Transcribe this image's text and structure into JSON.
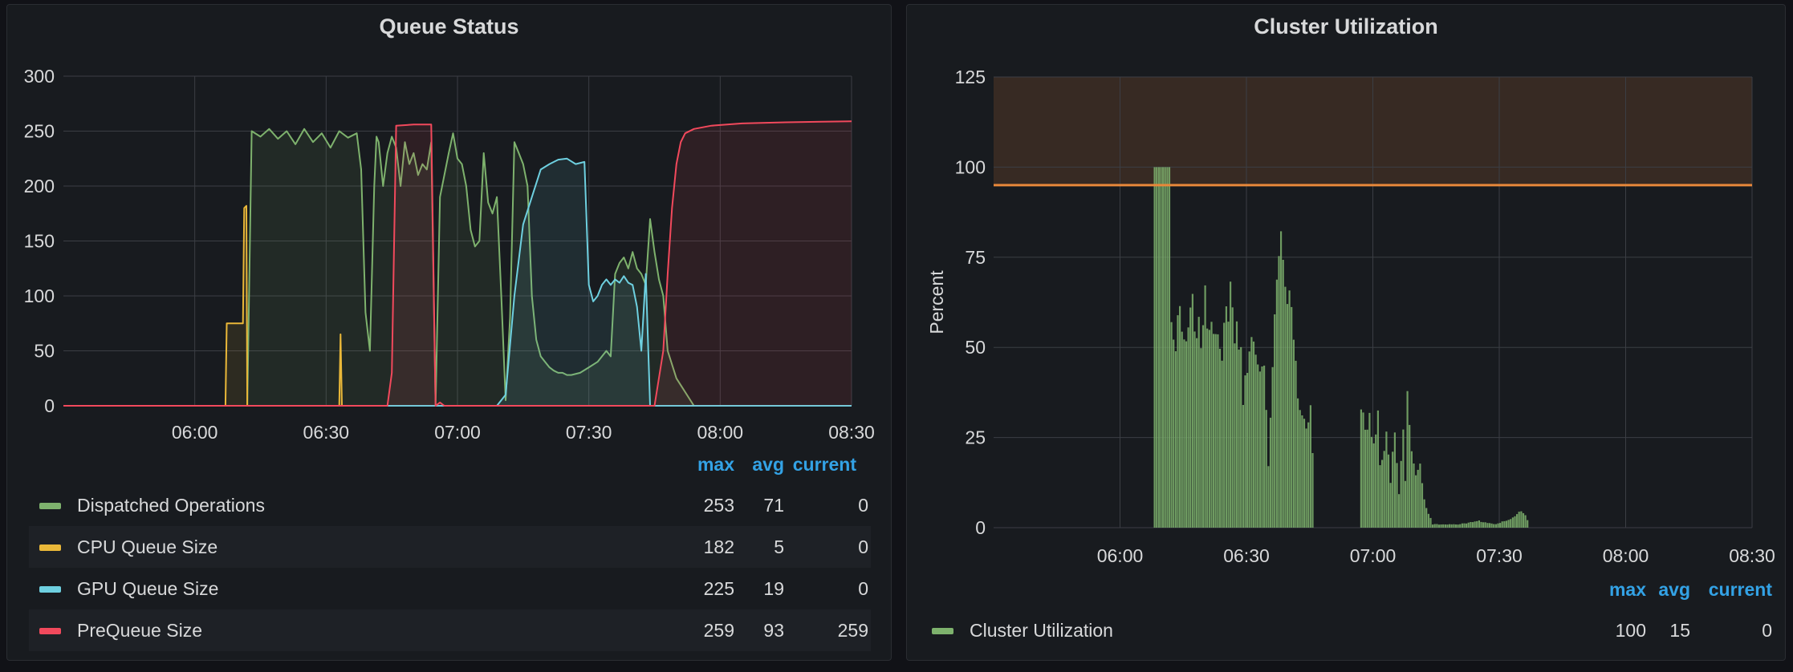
{
  "colors": {
    "dispatched": "#7eb26d",
    "cpu": "#eab839",
    "gpu": "#6ed0e0",
    "prequeue": "#f2495c",
    "utilization": "#7eb26d",
    "threshold": "#e8883a",
    "grid": "#3b3e44",
    "legend_header": "#33a2e5"
  },
  "panels": {
    "queue": {
      "title": "Queue Status",
      "legend_columns": [
        "max",
        "avg",
        "current"
      ],
      "legend": [
        {
          "name": "Dispatched Operations",
          "max": "253",
          "avg": "71",
          "current": "0",
          "color": "#7eb26d"
        },
        {
          "name": "CPU Queue Size",
          "max": "182",
          "avg": "5",
          "current": "0",
          "color": "#eab839"
        },
        {
          "name": "GPU Queue Size",
          "max": "225",
          "avg": "19",
          "current": "0",
          "color": "#6ed0e0"
        },
        {
          "name": "PreQueue Size",
          "max": "259",
          "avg": "93",
          "current": "259",
          "color": "#f2495c"
        }
      ]
    },
    "cluster": {
      "title": "Cluster Utilization",
      "legend_columns": [
        "max",
        "avg",
        "current"
      ],
      "legend": [
        {
          "name": "Cluster Utilization",
          "max": "100",
          "avg": "15",
          "current": "0",
          "color": "#7eb26d"
        }
      ]
    }
  },
  "chart_data": [
    {
      "type": "area",
      "title": "Queue Status",
      "xlabel": "",
      "ylabel": "",
      "x_domain_minutes": [
        330,
        510
      ],
      "x_ticks": [
        "06:00",
        "06:30",
        "07:00",
        "07:30",
        "08:00",
        "08:30"
      ],
      "x_tick_minutes": [
        360,
        390,
        420,
        450,
        480,
        510
      ],
      "ylim": [
        0,
        300
      ],
      "y_ticks": [
        0,
        50,
        100,
        150,
        200,
        250,
        300
      ],
      "grid": true,
      "legend_placement": "bottom",
      "series": [
        {
          "name": "Dispatched Operations",
          "color": "#7eb26d",
          "x_minutes": [
            330,
            371,
            372,
            373,
            375,
            377,
            379,
            381,
            383,
            385,
            387,
            389,
            391,
            393,
            395,
            397,
            398,
            399,
            400,
            401,
            401.5,
            402,
            403,
            404,
            405,
            406,
            407,
            408,
            409,
            410,
            411,
            412,
            413,
            414,
            415,
            416,
            418,
            419,
            420,
            421,
            422,
            423,
            424,
            425,
            426,
            427,
            428,
            429,
            430,
            431,
            432,
            433,
            434,
            435,
            436,
            437,
            438,
            439,
            440,
            441,
            442,
            443,
            444,
            445,
            446,
            448,
            450,
            452,
            454,
            455,
            456,
            457,
            458,
            459,
            460,
            461,
            462,
            463,
            464,
            465,
            466,
            467,
            468,
            470,
            474,
            510
          ],
          "values": [
            0,
            0,
            0,
            250,
            245,
            252,
            243,
            250,
            238,
            252,
            240,
            248,
            235,
            250,
            244,
            248,
            215,
            85,
            50,
            200,
            245,
            240,
            200,
            230,
            245,
            235,
            200,
            240,
            220,
            230,
            210,
            220,
            215,
            240,
            0,
            190,
            230,
            248,
            225,
            220,
            200,
            160,
            145,
            150,
            230,
            185,
            175,
            190,
            100,
            5,
            80,
            240,
            230,
            220,
            200,
            100,
            60,
            45,
            40,
            35,
            32,
            30,
            30,
            28,
            28,
            30,
            35,
            40,
            50,
            45,
            120,
            130,
            135,
            125,
            140,
            125,
            120,
            110,
            170,
            140,
            115,
            100,
            50,
            25,
            0,
            0
          ]
        },
        {
          "name": "CPU Queue Size",
          "color": "#eab839",
          "x_minutes": [
            330,
            367,
            367.3,
            371,
            371.3,
            371.8,
            372,
            393,
            393.3,
            393.6,
            394,
            510
          ],
          "values": [
            0,
            0,
            75,
            75,
            180,
            182,
            0,
            0,
            65,
            0,
            0,
            0
          ]
        },
        {
          "name": "GPU Queue Size",
          "color": "#6ed0e0",
          "x_minutes": [
            330,
            429,
            431,
            433,
            435,
            437,
            439,
            441,
            443,
            445,
            447,
            449,
            450,
            451,
            452,
            453,
            454,
            455,
            456,
            457,
            458,
            459,
            460,
            461,
            462,
            463,
            464,
            465,
            466,
            467,
            468,
            510
          ],
          "values": [
            0,
            0,
            10,
            100,
            165,
            190,
            215,
            220,
            224,
            225,
            220,
            222,
            110,
            95,
            100,
            110,
            115,
            110,
            115,
            112,
            118,
            112,
            110,
            90,
            50,
            120,
            0,
            0,
            0,
            0,
            0,
            0
          ]
        },
        {
          "name": "PreQueue Size",
          "color": "#f2495c",
          "x_minutes": [
            330,
            404,
            405,
            406,
            410,
            414,
            415,
            416,
            417,
            465,
            467,
            468,
            469,
            470,
            471,
            472,
            474,
            478,
            485,
            495,
            510
          ],
          "values": [
            0,
            0,
            30,
            255,
            256,
            256,
            0,
            3,
            0,
            0,
            50,
            120,
            180,
            220,
            240,
            248,
            252,
            255,
            257,
            258,
            259
          ]
        }
      ]
    },
    {
      "type": "bar",
      "title": "Cluster Utilization",
      "xlabel": "",
      "ylabel": "Percent",
      "x_domain_minutes": [
        330,
        510
      ],
      "x_ticks": [
        "06:00",
        "06:30",
        "07:00",
        "07:30",
        "08:00",
        "08:30"
      ],
      "x_tick_minutes": [
        360,
        390,
        420,
        450,
        480,
        510
      ],
      "ylim": [
        0,
        125
      ],
      "y_ticks": [
        0,
        25,
        50,
        75,
        100,
        125
      ],
      "grid": true,
      "threshold": 95,
      "legend_placement": "bottom",
      "series": [
        {
          "name": "Cluster Utilization",
          "color": "#7eb26d",
          "segments": [
            {
              "from": 368,
              "to": 372,
              "points": [
                [
                  368,
                  100
                ],
                [
                  372,
                  100
                ]
              ]
            },
            {
              "from": 372,
              "to": 384,
              "points": [
                [
                  372,
                  68
                ],
                [
                  373,
                  55
                ],
                [
                  374,
                  65
                ],
                [
                  376,
                  60
                ],
                [
                  377,
                  70
                ],
                [
                  379,
                  55
                ],
                [
                  380,
                  68
                ],
                [
                  382,
                  65
                ],
                [
                  384,
                  58
                ]
              ]
            },
            {
              "from": 384,
              "to": 389,
              "points": [
                [
                  384,
                  55
                ],
                [
                  386,
                  72
                ],
                [
                  387,
                  62
                ],
                [
                  389,
                  50
                ]
              ]
            },
            {
              "from": 389,
              "to": 395,
              "points": [
                [
                  389,
                  40
                ],
                [
                  391,
                  55
                ],
                [
                  393,
                  45
                ],
                [
                  394,
                  52
                ],
                [
                  395,
                  25
                ]
              ]
            },
            {
              "from": 395,
              "to": 402,
              "points": [
                [
                  395,
                  20
                ],
                [
                  397,
                  75
                ],
                [
                  398,
                  85
                ],
                [
                  399,
                  70
                ],
                [
                  400,
                  78
                ],
                [
                  401,
                  60
                ],
                [
                  402,
                  45
                ]
              ]
            },
            {
              "from": 402,
              "to": 406,
              "points": [
                [
                  402,
                  40
                ],
                [
                  403,
                  35
                ],
                [
                  404,
                  30
                ],
                [
                  405,
                  38
                ],
                [
                  406,
                  5
                ]
              ]
            },
            {
              "from": 417,
              "to": 422,
              "points": [
                [
                  417,
                  38
                ],
                [
                  418,
                  30
                ],
                [
                  419,
                  36
                ],
                [
                  420,
                  25
                ],
                [
                  421,
                  35
                ],
                [
                  422,
                  5
                ]
              ]
            },
            {
              "from": 422,
              "to": 428,
              "points": [
                [
                  422,
                  20
                ],
                [
                  423,
                  28
                ],
                [
                  424,
                  15
                ],
                [
                  425,
                  30
                ],
                [
                  426,
                  10
                ],
                [
                  427,
                  28
                ],
                [
                  428,
                  3
                ]
              ]
            },
            {
              "from": 428,
              "to": 434,
              "points": [
                [
                  428,
                  38
                ],
                [
                  429,
                  22
                ],
                [
                  430,
                  15
                ],
                [
                  431,
                  18
                ],
                [
                  432,
                  8
                ],
                [
                  433,
                  4
                ],
                [
                  434,
                  2
                ]
              ]
            },
            {
              "from": 434,
              "to": 449,
              "points": [
                [
                  434,
                  1
                ],
                [
                  440,
                  1
                ],
                [
                  445,
                  2
                ],
                [
                  449,
                  1
                ]
              ]
            },
            {
              "from": 449,
              "to": 457,
              "points": [
                [
                  449,
                  1
                ],
                [
                  451,
                  2
                ],
                [
                  453,
                  3
                ],
                [
                  455,
                  5
                ],
                [
                  456,
                  4
                ],
                [
                  457,
                  1
                ]
              ]
            }
          ]
        }
      ]
    }
  ]
}
